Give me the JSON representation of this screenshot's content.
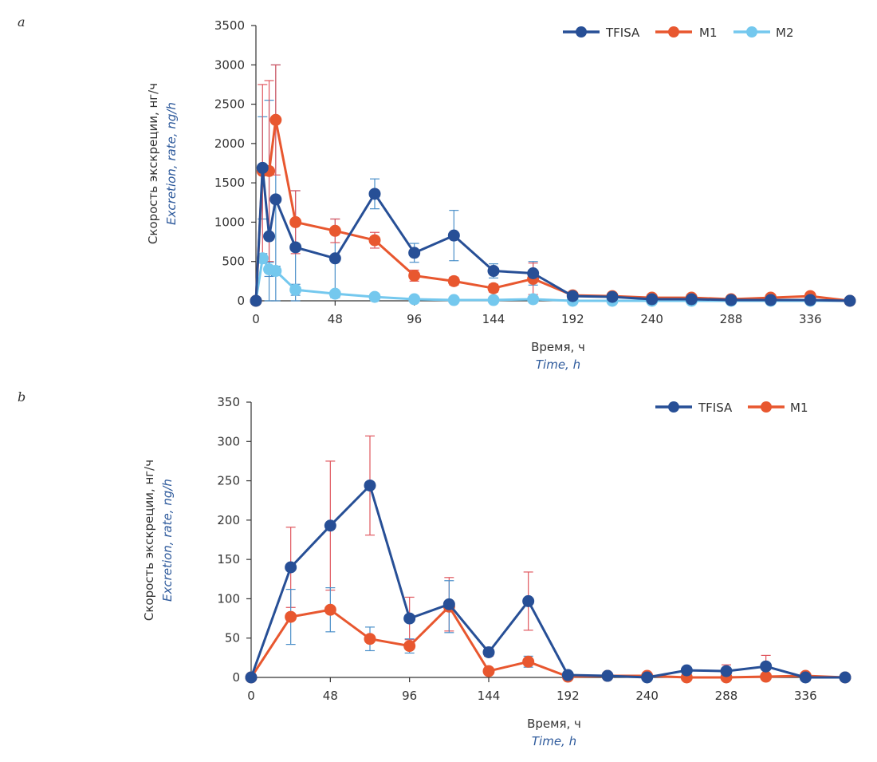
{
  "chart_data": [
    {
      "panel": "a",
      "type": "line",
      "title": "",
      "xlabel": "Время, ч",
      "xlabel_en": "Time, h",
      "ylabel": "Скорость экскреции, нг/ч",
      "ylabel_en": "Excretion, rate, ng/h",
      "xlim": [
        0,
        360
      ],
      "ylim": [
        0,
        3500
      ],
      "xticks": [
        0,
        48,
        96,
        144,
        192,
        240,
        288,
        336
      ],
      "yticks": [
        0,
        500,
        1000,
        1500,
        2000,
        2500,
        3000,
        3500
      ],
      "grid": false,
      "legend": "top-right",
      "x": [
        0,
        4,
        8,
        12,
        24,
        48,
        72,
        96,
        120,
        144,
        168,
        192,
        216,
        240,
        264,
        288,
        312,
        336,
        360
      ],
      "series": [
        {
          "name": "TFISA",
          "color": "#274f96",
          "error_color": "#4a8fc9",
          "values": [
            0,
            1690,
            820,
            1290,
            680,
            540,
            1360,
            610,
            830,
            380,
            350,
            60,
            50,
            20,
            20,
            10,
            10,
            10,
            0
          ],
          "errors": [
            0,
            650,
            1730,
            1710,
            720,
            500,
            190,
            120,
            320,
            90,
            150,
            20,
            10,
            10,
            10,
            5,
            5,
            5,
            0
          ]
        },
        {
          "name": "M1",
          "color": "#e8572f",
          "error_color": "#e0565e",
          "values": [
            0,
            1650,
            1650,
            2300,
            1000,
            890,
            770,
            320,
            250,
            160,
            280,
            70,
            60,
            40,
            40,
            20,
            40,
            60,
            0
          ],
          "errors": [
            0,
            1100,
            1150,
            700,
            400,
            150,
            100,
            70,
            50,
            50,
            200,
            20,
            10,
            10,
            10,
            5,
            10,
            10,
            0
          ]
        },
        {
          "name": "M2",
          "color": "#74c8ee",
          "error_color": "#4a8fc9",
          "values": [
            0,
            540,
            400,
            380,
            140,
            90,
            50,
            20,
            10,
            10,
            20,
            0,
            0,
            0,
            0,
            0,
            0,
            0,
            0
          ],
          "errors": [
            0,
            60,
            90,
            60,
            70,
            20,
            10,
            5,
            5,
            5,
            5,
            0,
            0,
            0,
            0,
            0,
            0,
            0,
            0
          ]
        }
      ]
    },
    {
      "panel": "b",
      "type": "line",
      "title": "",
      "xlabel": "Время, ч",
      "xlabel_en": "Time, h",
      "ylabel": "Скорость экскреции, нг/ч",
      "ylabel_en": "Excretion, rate, ng/h",
      "xlim": [
        0,
        360
      ],
      "ylim": [
        0,
        350
      ],
      "xticks": [
        0,
        48,
        96,
        144,
        192,
        240,
        288,
        336
      ],
      "yticks": [
        0,
        50,
        100,
        150,
        200,
        250,
        300,
        350
      ],
      "grid": false,
      "legend": "top-right",
      "x": [
        0,
        24,
        48,
        72,
        96,
        120,
        144,
        168,
        192,
        216,
        240,
        264,
        288,
        312,
        336,
        360
      ],
      "series": [
        {
          "name": "TFISA",
          "color": "#274f96",
          "error_color": "#e0565e",
          "values": [
            0,
            140,
            193,
            244,
            75,
            93,
            32,
            97,
            3,
            2,
            0,
            9,
            8,
            14,
            0,
            0
          ],
          "errors": [
            0,
            51,
            82,
            63,
            27,
            34,
            5,
            37,
            2,
            1,
            0,
            4,
            8,
            14,
            0,
            0
          ]
        },
        {
          "name": "M1",
          "color": "#e8572f",
          "error_color": "#4a8fc9",
          "values": [
            0,
            77,
            86,
            49,
            40,
            90,
            8,
            20,
            1,
            2,
            2,
            0,
            0,
            1,
            2,
            0
          ],
          "errors": [
            0,
            35,
            28,
            15,
            9,
            33,
            2,
            7,
            1,
            1,
            1,
            0,
            0,
            1,
            1,
            0
          ]
        }
      ]
    }
  ],
  "panels": {
    "a": {
      "letter": "a"
    },
    "b": {
      "letter": "b"
    }
  }
}
